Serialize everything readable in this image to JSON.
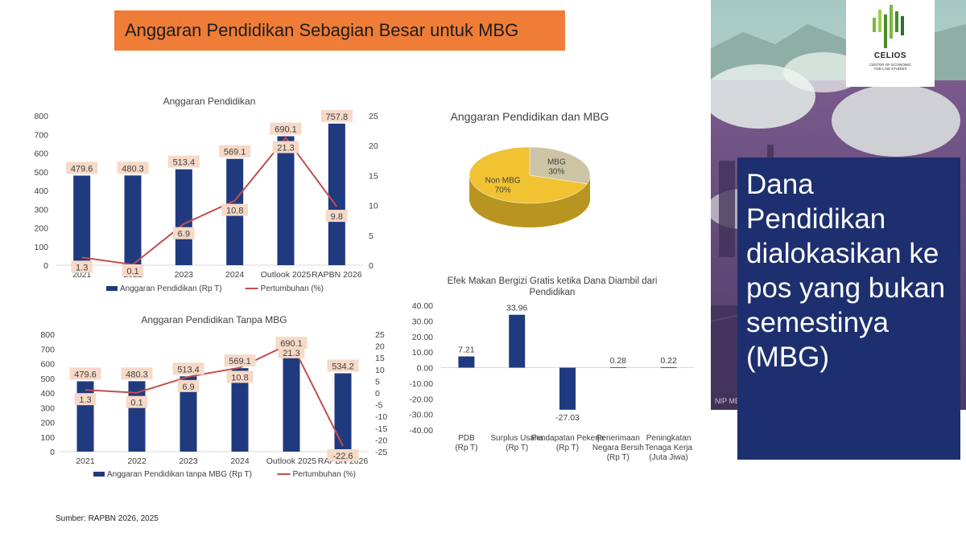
{
  "title": "Anggaran Pendidikan Sebagian Besar untuk MBG",
  "source": "Sumber: RAPBN 2026, 2025",
  "side_panel": {
    "logo_name": "CELIOS",
    "logo_sub": "CENTER OF ECONOMIC AND LAW STUDIES",
    "headline": "Dana Pendidikan dialokasikan ke pos yang bukan semestinya (MBG)"
  },
  "colors": {
    "bar": "#203a7f",
    "line": "#c0504d",
    "label_bg": "#f6d9c7",
    "banner": "#ef7d37",
    "pie_mbg": "#cdc4a5",
    "pie_non": "#f1c232",
    "blue_box": "#1d2f6f"
  },
  "chart_data": [
    {
      "type": "bar",
      "title": "Anggaran Pendidikan",
      "categories": [
        "2021",
        "2022",
        "2023",
        "2024",
        "Outlook 2025",
        "RAPBN 2026"
      ],
      "series": [
        {
          "name": "Anggaran Pendidikan (Rp T)",
          "axis": "left",
          "values": [
            479.6,
            480.3,
            513.4,
            569.1,
            690.1,
            757.8
          ],
          "labels": [
            "479.6",
            "480.3",
            "513.4",
            "569.1",
            "690.1",
            "757.8"
          ]
        },
        {
          "name": "Pertumbuhan (%)",
          "type": "line",
          "axis": "right",
          "values": [
            1.3,
            0.1,
            6.9,
            10.8,
            21.3,
            9.8
          ],
          "labels": [
            "1.3",
            "0.1",
            "6.9",
            "10.8",
            "21.3",
            "9.8"
          ]
        }
      ],
      "yticks": [
        "800",
        "700",
        "600",
        "500",
        "400",
        "300",
        "200",
        "100",
        "0"
      ],
      "y2ticks": [
        "25",
        "20",
        "15",
        "10",
        "5",
        "0"
      ],
      "ylim": [
        0,
        800
      ],
      "y2lim": [
        0,
        25
      ],
      "legend": "bottom"
    },
    {
      "type": "bar",
      "title": "Anggaran Pendidikan Tanpa MBG",
      "categories": [
        "2021",
        "2022",
        "2023",
        "2024",
        "Outlook 2025",
        "RAPBN 2026"
      ],
      "series": [
        {
          "name": "Anggaran Pendidikan tanpa MBG (Rp T)",
          "axis": "left",
          "values": [
            479.6,
            480.3,
            513.4,
            569.1,
            690.1,
            534.2
          ],
          "labels": [
            "479.6",
            "480.3",
            "513.4",
            "569.1",
            "690.1",
            "534.2"
          ]
        },
        {
          "name": "Pertumbuhan (%)",
          "type": "line",
          "axis": "right",
          "values": [
            1.3,
            0.1,
            6.9,
            10.8,
            21.3,
            -22.6
          ],
          "labels": [
            "1.3",
            "0.1",
            "6.9",
            "10.8",
            "21.3",
            "-22.6"
          ]
        }
      ],
      "yticks": [
        "800",
        "700",
        "600",
        "500",
        "400",
        "300",
        "200",
        "100",
        "0"
      ],
      "y2ticks": [
        "25",
        "20",
        "15",
        "10",
        "5",
        "0",
        "-5",
        "-10",
        "-15",
        "-20",
        "-25"
      ],
      "ylim": [
        0,
        800
      ],
      "y2lim": [
        -25,
        25
      ],
      "legend": "bottom"
    },
    {
      "type": "pie",
      "title": "Anggaran Pendidikan dan MBG",
      "slices": [
        {
          "label": "MBG",
          "value": 30,
          "pct": "30%"
        },
        {
          "label": "Non MBG",
          "value": 70,
          "pct": "70%"
        }
      ],
      "style": "3d"
    },
    {
      "type": "bar",
      "title": "Efek Makan Bergizi Gratis ketika Dana Diambil dari Pendidikan",
      "categories": [
        "PDB (Rp T)",
        "Surplus Usaha (Rp T)",
        "Pendapatan Pekerja (Rp T)",
        "Penerimaan Negara Bersih (Rp T)",
        "Peningkatan Tenaga Kerja (Juta Jiwa)"
      ],
      "values": [
        7.21,
        33.96,
        -27.03,
        0.28,
        0.22
      ],
      "labels": [
        "7.21",
        "33.96",
        "-27.03",
        "0.28",
        "0.22"
      ],
      "yticks": [
        "40.00",
        "30.00",
        "20.00",
        "10.00",
        "0.00",
        "-10.00",
        "-20.00",
        "-30.00",
        "-40.00"
      ],
      "ylim": [
        -40,
        40
      ]
    }
  ]
}
